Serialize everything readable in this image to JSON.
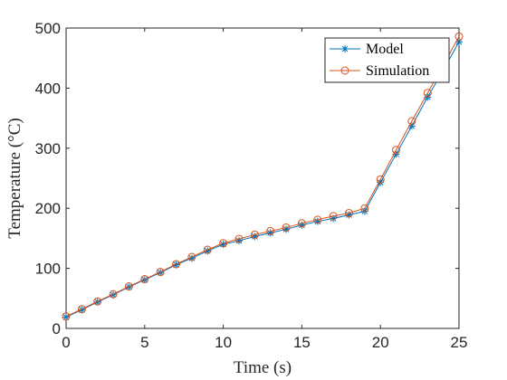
{
  "chart_data": {
    "type": "line",
    "xlabel": "Time (s)",
    "ylabel": "Temperature (°C)",
    "xlim": [
      0,
      25
    ],
    "ylim": [
      0,
      500
    ],
    "xticks": [
      0,
      5,
      10,
      15,
      20,
      25
    ],
    "yticks": [
      0,
      100,
      200,
      300,
      400,
      500
    ],
    "grid": false,
    "legend": "top-right",
    "x": [
      0,
      1,
      2,
      3,
      4,
      5,
      6,
      7,
      8,
      9,
      10,
      11,
      12,
      13,
      14,
      15,
      16,
      17,
      18,
      19,
      20,
      21,
      22,
      23,
      24,
      25
    ],
    "series": [
      {
        "name": "Model",
        "marker": "asterisk",
        "color": "#0072BD",
        "values": [
          19,
          31,
          44,
          56,
          69,
          81,
          93,
          106,
          117,
          129,
          140,
          146,
          153,
          159,
          165,
          172,
          178,
          183,
          189,
          195,
          243,
          290,
          337,
          385,
          430,
          477
        ]
      },
      {
        "name": "Simulation",
        "marker": "circle",
        "color": "#D95319",
        "values": [
          20,
          32,
          45,
          57,
          70,
          82,
          94,
          107,
          119,
          131,
          142,
          149,
          156,
          162,
          168,
          175,
          181,
          187,
          192,
          200,
          248,
          297,
          345,
          392,
          438,
          486
        ]
      }
    ]
  }
}
